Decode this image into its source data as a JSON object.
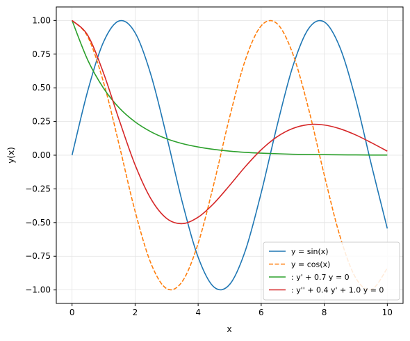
{
  "chart_data": {
    "type": "line",
    "xlabel": "x",
    "ylabel": "y(x)",
    "xlim": [
      -0.5,
      10.5
    ],
    "ylim": [
      -1.1,
      1.1
    ],
    "xticks": [
      0,
      2,
      4,
      6,
      8,
      10
    ],
    "xtick_labels": [
      "0",
      "2",
      "4",
      "6",
      "8",
      "10"
    ],
    "yticks": [
      -1.0,
      -0.75,
      -0.5,
      -0.25,
      0.0,
      0.25,
      0.5,
      0.75,
      1.0
    ],
    "ytick_labels": [
      "−1.00",
      "−0.75",
      "−0.50",
      "−0.25",
      "0.00",
      "0.25",
      "0.50",
      "0.75",
      "1.00"
    ],
    "grid": true,
    "legend_position": "lower-right",
    "series": [
      {
        "name": "y = sin(x)",
        "color": "#1f77b4",
        "style": "solid",
        "x": [
          0,
          0.5,
          1,
          1.5,
          2,
          2.5,
          3,
          3.5,
          4,
          4.5,
          5,
          5.5,
          6,
          6.5,
          7,
          7.5,
          8,
          8.5,
          9,
          9.5,
          10
        ],
        "y": [
          0.0,
          0.479,
          0.841,
          0.997,
          0.909,
          0.598,
          0.141,
          -0.351,
          -0.757,
          -0.978,
          -0.959,
          -0.706,
          -0.279,
          0.215,
          0.657,
          0.938,
          0.989,
          0.798,
          0.412,
          -0.075,
          -0.544
        ]
      },
      {
        "name": "y = cos(x)",
        "color": "#ff7f0e",
        "style": "dashed",
        "x": [
          0,
          0.5,
          1,
          1.5,
          2,
          2.5,
          3,
          3.5,
          4,
          4.5,
          5,
          5.5,
          6,
          6.5,
          7,
          7.5,
          8,
          8.5,
          9,
          9.5,
          10
        ],
        "y": [
          1.0,
          0.878,
          0.54,
          0.071,
          -0.416,
          -0.801,
          -0.99,
          -0.936,
          -0.654,
          -0.211,
          0.284,
          0.709,
          0.96,
          0.977,
          0.754,
          0.347,
          -0.146,
          -0.602,
          -0.911,
          -0.997,
          -0.839
        ]
      },
      {
        "name": ": y' + 0.7 y = 0",
        "color": "#2ca02c",
        "style": "solid",
        "x": [
          0,
          0.5,
          1,
          1.5,
          2,
          2.5,
          3,
          3.5,
          4,
          4.5,
          5,
          5.5,
          6,
          6.5,
          7,
          7.5,
          8,
          8.5,
          9,
          9.5,
          10
        ],
        "y": [
          1.0,
          0.705,
          0.497,
          0.35,
          0.247,
          0.174,
          0.122,
          0.086,
          0.061,
          0.043,
          0.03,
          0.021,
          0.015,
          0.011,
          0.007,
          0.005,
          0.004,
          0.003,
          0.002,
          0.001,
          0.001
        ]
      },
      {
        "name": ": y'' + 0.4 y' + 1.0 y = 0",
        "color": "#d62728",
        "style": "solid",
        "x": [
          0,
          0.5,
          1,
          1.5,
          2,
          2.5,
          3,
          3.5,
          4,
          4.5,
          5,
          5.5,
          6,
          6.5,
          7,
          7.5,
          8,
          8.5,
          9,
          9.5,
          10
        ],
        "y": [
          1.0,
          0.889,
          0.608,
          0.258,
          -0.072,
          -0.323,
          -0.469,
          -0.508,
          -0.46,
          -0.357,
          -0.224,
          -0.084,
          0.04,
          0.136,
          0.198,
          0.227,
          0.224,
          0.196,
          0.15,
          0.092,
          0.03
        ]
      }
    ]
  }
}
